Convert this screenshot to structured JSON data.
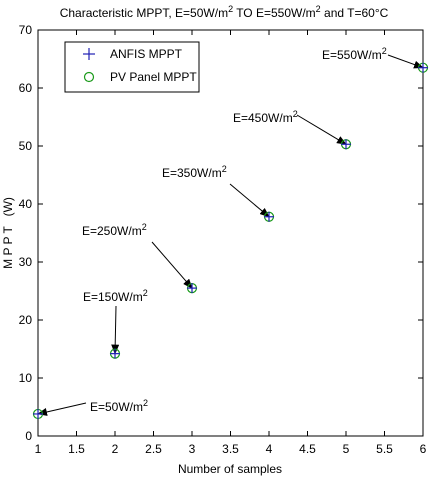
{
  "chart_data": {
    "type": "scatter",
    "title": {
      "part1": "Characteristic MPPT, E=50W/m",
      "sup1": "2",
      "part2": " TO E=550W/m",
      "sup2": "2",
      "part3": " and T=60°C"
    },
    "xlabel": "Number of samples",
    "ylabel": "M P P T   (W)",
    "xlim": [
      1,
      6
    ],
    "ylim": [
      0,
      70
    ],
    "xticks": [
      "1",
      "1.5",
      "2",
      "2.5",
      "3",
      "3.5",
      "4",
      "4.5",
      "5",
      "5.5",
      "6"
    ],
    "yticks": [
      "0",
      "10",
      "20",
      "30",
      "40",
      "50",
      "60",
      "70"
    ],
    "grid": false,
    "legend_position": "top-left",
    "series": [
      {
        "name": "ANFIS MPPT",
        "marker": "+",
        "color": "#1f1fb4",
        "x": [
          1,
          2,
          3,
          4,
          5,
          6
        ],
        "y": [
          3.8,
          14.2,
          25.5,
          37.8,
          50.3,
          63.5
        ]
      },
      {
        "name": "PV Panel MPPT",
        "marker": "o",
        "color": "#1a9a1a",
        "x": [
          1,
          2,
          3,
          4,
          5,
          6
        ],
        "y": [
          3.8,
          14.2,
          25.5,
          37.8,
          50.3,
          63.5
        ]
      }
    ],
    "annotations": [
      {
        "text": "E=50W/m",
        "sup": "2",
        "target_x": 1,
        "target_y": 3.8
      },
      {
        "text": "E=150W/m",
        "sup": "2",
        "target_x": 2,
        "target_y": 14.2
      },
      {
        "text": "E=250W/m",
        "sup": "2",
        "target_x": 3,
        "target_y": 25.5
      },
      {
        "text": "E=350W/m",
        "sup": "2",
        "target_x": 4,
        "target_y": 37.8
      },
      {
        "text": "E=450W/m",
        "sup": "2",
        "target_x": 5,
        "target_y": 50.3
      },
      {
        "text": "E=550W/m",
        "sup": "2",
        "target_x": 6,
        "target_y": 63.5
      }
    ]
  }
}
